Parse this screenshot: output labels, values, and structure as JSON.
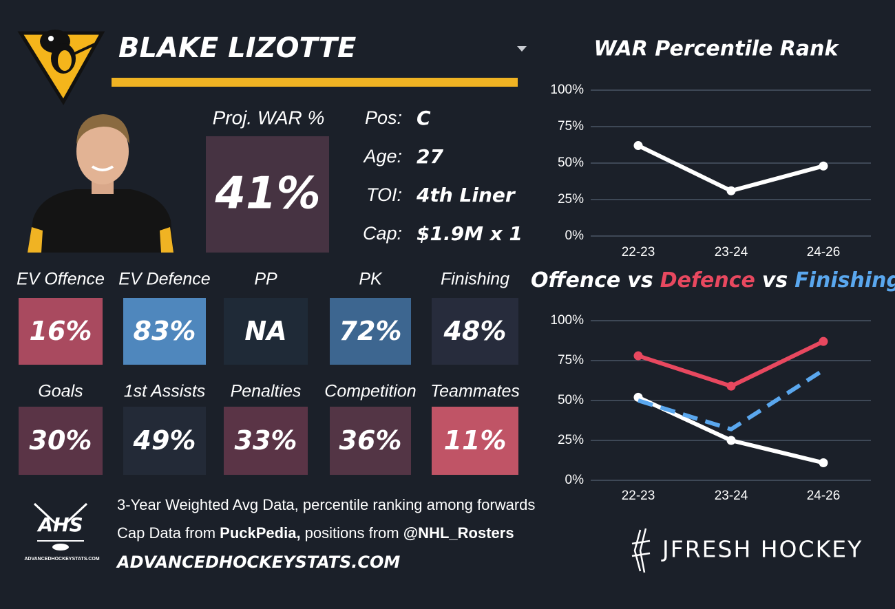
{
  "header": {
    "name": "BLAKE LIZOTTE"
  },
  "proj_war": {
    "label": "Proj. WAR %",
    "value": "41%"
  },
  "info": [
    {
      "label": "Pos:",
      "value": "C"
    },
    {
      "label": "Age:",
      "value": "27"
    },
    {
      "label": "TOI:",
      "value": "4th Liner"
    },
    {
      "label": "Cap:",
      "value": "$1.9M x 1"
    }
  ],
  "tiles": [
    {
      "label": "EV Offence",
      "value": "16%",
      "color": "#a94a5f"
    },
    {
      "label": "EV Defence",
      "value": "83%",
      "color": "#4f87bd"
    },
    {
      "label": "PP",
      "value": "NA",
      "color": "#1f2a37"
    },
    {
      "label": "PK",
      "value": "72%",
      "color": "#3d6690"
    },
    {
      "label": "Finishing",
      "value": "48%",
      "color": "#272c3c"
    },
    {
      "label": "Goals",
      "value": "30%",
      "color": "#5a3446"
    },
    {
      "label": "1st Assists",
      "value": "49%",
      "color": "#232a37"
    },
    {
      "label": "Penalties",
      "value": "33%",
      "color": "#5a3446"
    },
    {
      "label": "Competition",
      "value": "36%",
      "color": "#533545"
    },
    {
      "label": "Teammates",
      "value": "11%",
      "color": "#c05466"
    }
  ],
  "footer": {
    "logo": "AHS",
    "logo_caption": "ADVANCEDHOCKEYSTATS.COM",
    "line1": "3-Year Weighted Avg Data, percentile ranking among forwards",
    "line2": [
      {
        "text": "Cap Data from ",
        "bold": false
      },
      {
        "text": "PuckPedia,",
        "bold": true
      },
      {
        "text": " positions from ",
        "bold": false
      },
      {
        "text": "@NHL_Rosters",
        "bold": true
      }
    ],
    "website": "ADVANCEDHOCKEYSTATS.COM",
    "brand": "JFRESH HOCKEY"
  },
  "chart_data": [
    {
      "type": "line",
      "title": "WAR Percentile Rank",
      "categories": [
        "22-23",
        "23-24",
        "24-26"
      ],
      "series": [
        {
          "color": "#ffffff",
          "values": [
            62,
            31,
            48
          ]
        }
      ],
      "ylim": [
        0,
        100
      ],
      "yticks": [
        {
          "value": 0,
          "label": "0%"
        },
        {
          "value": 25,
          "label": "25%"
        },
        {
          "value": 50,
          "label": "50%"
        },
        {
          "value": 75,
          "label": "75%"
        },
        {
          "value": 100,
          "label": "100%"
        }
      ],
      "grid": true
    },
    {
      "type": "line",
      "title_joiner": "vs",
      "categories": [
        "22-23",
        "23-24",
        "24-26"
      ],
      "series": [
        {
          "name": "Offence",
          "color": "#ffffff",
          "values": [
            52,
            25,
            11
          ]
        },
        {
          "name": "Defence",
          "color": "#e8485f",
          "values": [
            78,
            59,
            87
          ]
        },
        {
          "name": "Finishing",
          "color": "#5aa7ee",
          "values": [
            50,
            32,
            69
          ],
          "dashed": true
        }
      ],
      "ylim": [
        0,
        100
      ],
      "yticks": [
        {
          "value": 0,
          "label": "0%"
        },
        {
          "value": 25,
          "label": "25%"
        },
        {
          "value": 50,
          "label": "50%"
        },
        {
          "value": 75,
          "label": "75%"
        },
        {
          "value": 100,
          "label": "100%"
        }
      ],
      "grid": true
    }
  ]
}
